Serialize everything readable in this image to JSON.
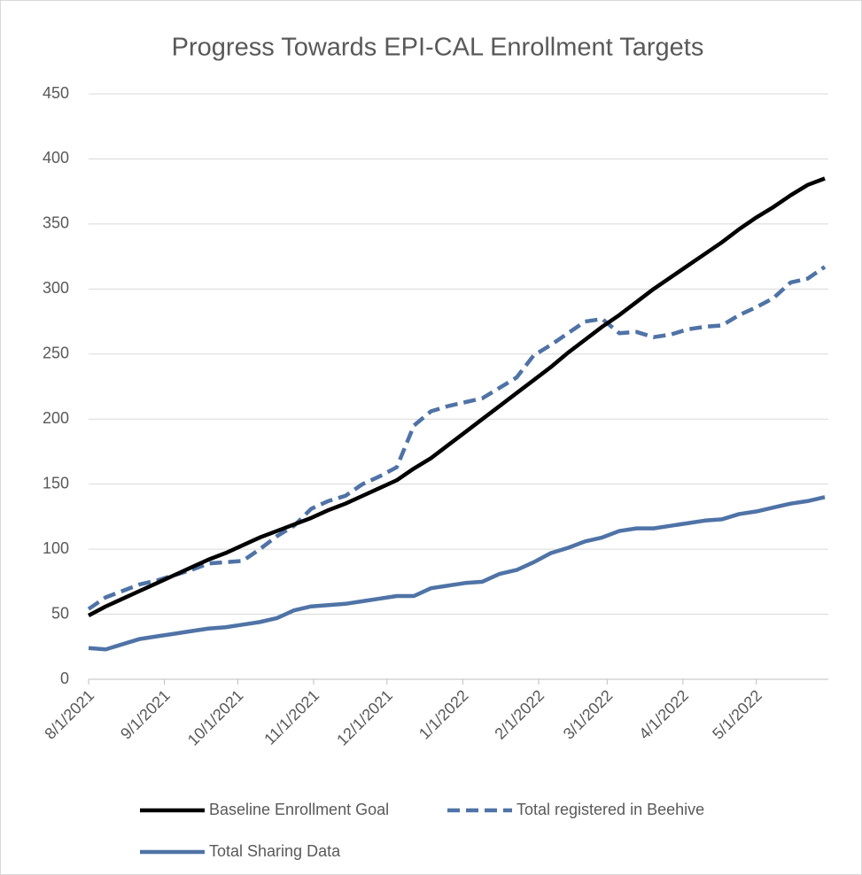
{
  "chart_data": {
    "type": "line",
    "title": "Progress Towards EPI-CAL Enrollment Targets",
    "x": [
      "8/1/2021",
      "8/8/2021",
      "8/15/2021",
      "8/22/2021",
      "8/29/2021",
      "9/5/2021",
      "9/12/2021",
      "9/19/2021",
      "9/26/2021",
      "10/3/2021",
      "10/10/2021",
      "10/17/2021",
      "10/24/2021",
      "10/31/2021",
      "11/7/2021",
      "11/14/2021",
      "11/21/2021",
      "11/28/2021",
      "12/5/2021",
      "12/12/2021",
      "12/19/2021",
      "12/26/2021",
      "1/2/2022",
      "1/9/2022",
      "1/16/2022",
      "1/23/2022",
      "1/30/2022",
      "2/6/2022",
      "2/13/2022",
      "2/20/2022",
      "2/27/2022",
      "3/6/2022",
      "3/13/2022",
      "3/20/2022",
      "3/27/2022",
      "4/3/2022",
      "4/10/2022",
      "4/17/2022",
      "4/24/2022",
      "5/1/2022",
      "5/8/2022",
      "5/15/2022",
      "5/22/2022",
      "5/29/2022"
    ],
    "series": [
      {
        "name": "Baseline Enrollment Goal",
        "color": "#000000",
        "dash": false,
        "values": [
          49,
          56,
          62,
          68,
          74,
          80,
          86,
          92,
          97,
          103,
          109,
          114,
          119,
          124,
          130,
          135,
          141,
          147,
          153,
          162,
          170,
          180,
          190,
          200,
          210,
          220,
          230,
          240,
          251,
          261,
          271,
          280,
          290,
          300,
          309,
          318,
          327,
          336,
          346,
          355,
          363,
          372,
          380,
          385
        ]
      },
      {
        "name": "Total registered in Beehive",
        "color": "#4f73a6",
        "dash": true,
        "values": [
          54,
          63,
          68,
          73,
          76,
          80,
          84,
          89,
          90,
          91,
          100,
          110,
          118,
          131,
          137,
          141,
          150,
          156,
          163,
          195,
          206,
          210,
          213,
          216,
          224,
          232,
          249,
          257,
          266,
          275,
          277,
          266,
          267,
          263,
          265,
          269,
          271,
          272,
          280,
          286,
          293,
          305,
          308,
          317
        ]
      },
      {
        "name": "Total Sharing Data",
        "color": "#4f73a6",
        "dash": false,
        "values": [
          24,
          23,
          27,
          31,
          33,
          35,
          37,
          39,
          40,
          42,
          44,
          47,
          53,
          56,
          57,
          58,
          60,
          62,
          64,
          64,
          70,
          72,
          74,
          75,
          81,
          84,
          90,
          97,
          101,
          106,
          109,
          114,
          116,
          116,
          118,
          120,
          122,
          123,
          127,
          129,
          132,
          135,
          137,
          140
        ]
      }
    ],
    "xlim": [
      "8/1/2021",
      "5/29/2022"
    ],
    "xticks": [
      "8/1/2021",
      "9/1/2021",
      "10/1/2021",
      "11/1/2021",
      "12/1/2021",
      "1/1/2022",
      "2/1/2022",
      "3/1/2022",
      "4/1/2022",
      "5/1/2022"
    ],
    "ylim": [
      0,
      450
    ],
    "yticks": [
      0,
      50,
      100,
      150,
      200,
      250,
      300,
      350,
      400,
      450
    ],
    "grid": true
  }
}
